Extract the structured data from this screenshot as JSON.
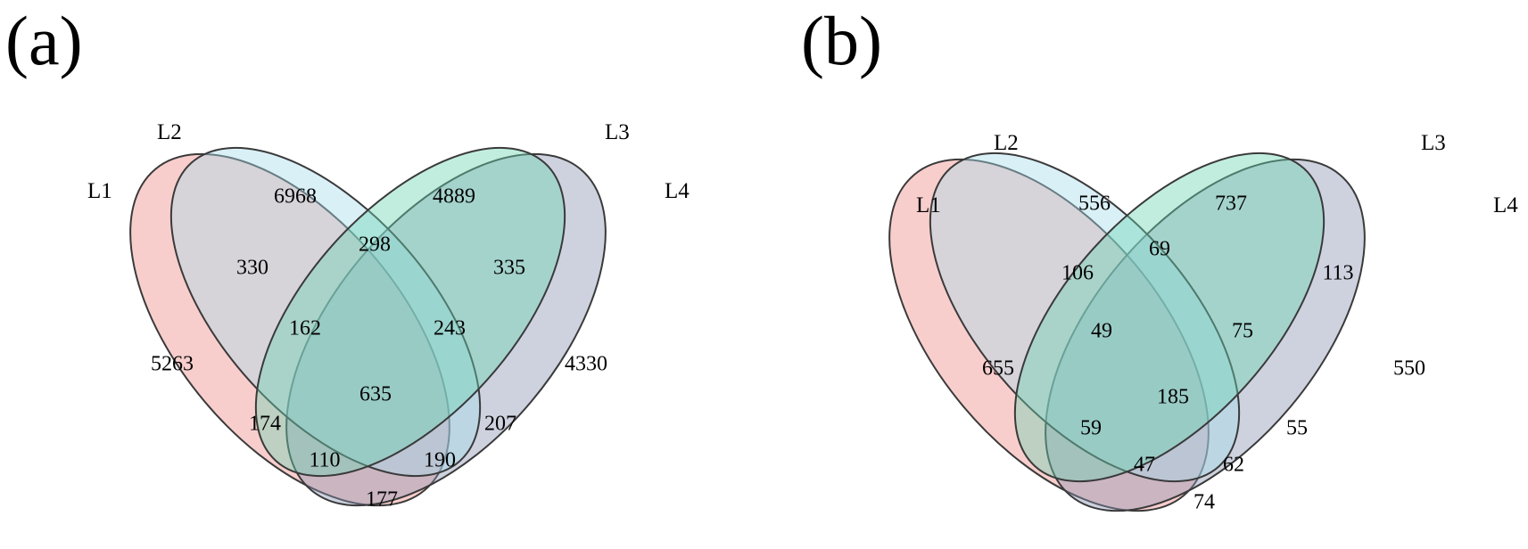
{
  "colors": {
    "L1": "#ee8a86",
    "L2": "#a7dbec",
    "L3": "#6cd3b3",
    "L4": "#8a93b3"
  },
  "panels": [
    {
      "label": "(a)",
      "sets": [
        "L1",
        "L2",
        "L3",
        "L4"
      ],
      "regions": {
        "L1_only": "5263",
        "L2_only": "6968",
        "L3_only": "4889",
        "L4_only": "4330",
        "L1_L2": "330",
        "L2_L3": "298",
        "L3_L4": "335",
        "L1_L2_L3": "162",
        "L2_L3_L4": "243",
        "L1_L2_L3_L4": "635",
        "L1_L3": "174",
        "L2_L4": "207",
        "L1_L3_L4": "110",
        "L1_L2_L4": "190",
        "L1_L4": "177"
      }
    },
    {
      "label": "(b)",
      "sets": [
        "L1",
        "L2",
        "L3",
        "L4"
      ],
      "regions": {
        "L1_only": "655",
        "L2_only": "556",
        "L3_only": "737",
        "L4_only": "550",
        "L1_L2": "106",
        "L2_L3": "69",
        "L3_L4": "113",
        "L1_L2_L3": "49",
        "L2_L3_L4": "75",
        "L1_L2_L3_L4": "185",
        "L1_L3": "59",
        "L2_L4": "55",
        "L1_L3_L4": "47",
        "L1_L2_L4": "62",
        "L1_L4": "74"
      }
    }
  ]
}
